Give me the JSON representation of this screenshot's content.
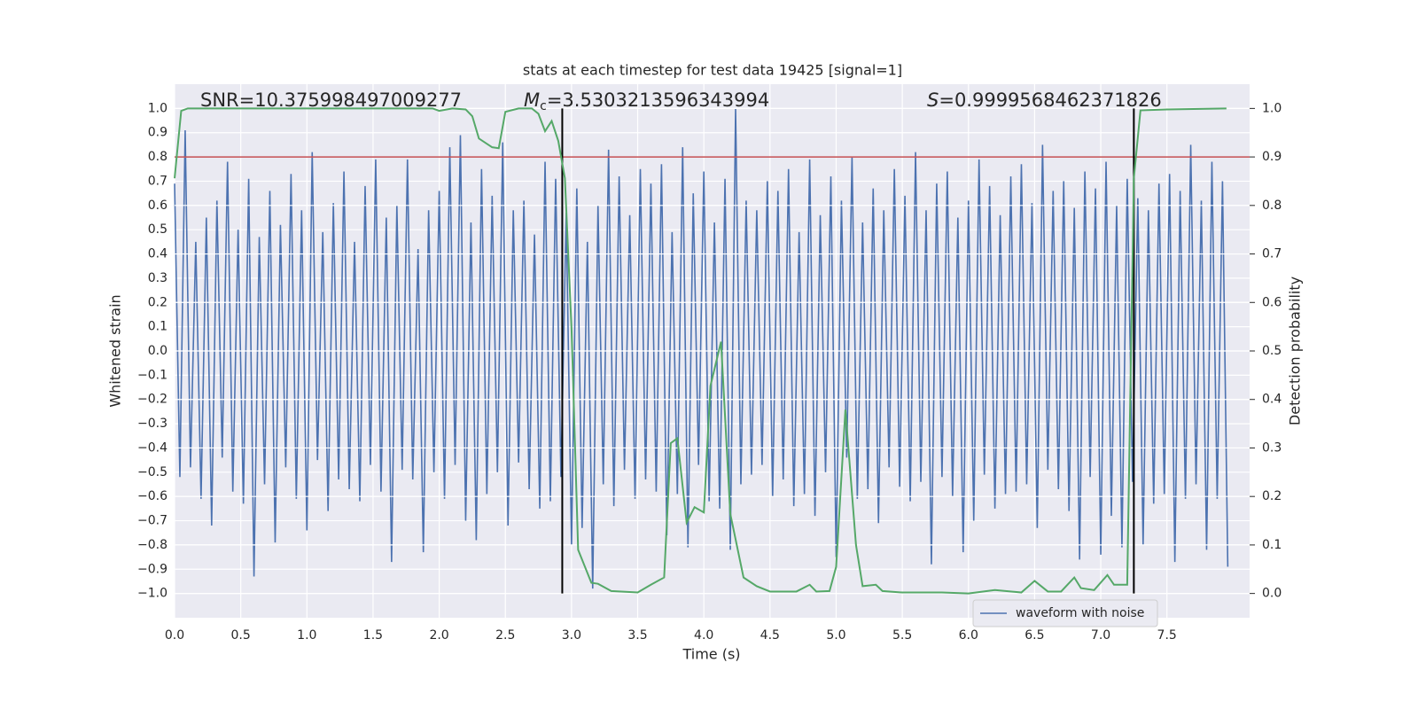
{
  "chart_data": {
    "type": "line",
    "title": "stats at each timestep for test data 19425 [signal=1]",
    "xlabel": "Time (s)",
    "ylabel": "Whitened strain",
    "y2label": "Detection probability",
    "xlim": [
      0,
      8.125
    ],
    "ylim": [
      -1.1,
      1.1
    ],
    "y2lim": [
      -0.05,
      1.05
    ],
    "grid": true,
    "legend": "lower right",
    "xticks": [
      {
        "value": 0,
        "label": "0.0"
      },
      0.5,
      {
        "value": 1,
        "label": "1.0"
      },
      1.5,
      {
        "value": 2,
        "label": "2.0"
      },
      2.5,
      {
        "value": 3,
        "label": "3.0"
      },
      3.5,
      {
        "value": 4,
        "label": "4.0"
      },
      4.5,
      {
        "value": 5,
        "label": "5.0"
      },
      5.5,
      {
        "value": 6,
        "label": "6.0"
      },
      6.5,
      {
        "value": 7,
        "label": "7.0"
      },
      7.5
    ],
    "yticks": [
      {
        "value": -1,
        "label": "−1.0"
      },
      {
        "value": -0.9,
        "label": "−0.9"
      },
      {
        "value": -0.8,
        "label": "−0.8"
      },
      {
        "value": -0.7,
        "label": "−0.7"
      },
      {
        "value": -0.6,
        "label": "−0.6"
      },
      {
        "value": -0.5,
        "label": "−0.5"
      },
      {
        "value": -0.4,
        "label": "−0.4"
      },
      {
        "value": -0.3,
        "label": "−0.3"
      },
      {
        "value": -0.2,
        "label": "−0.2"
      },
      {
        "value": -0.1,
        "label": "−0.1"
      },
      {
        "value": 0,
        "label": "0.0"
      },
      0.1,
      0.2,
      0.3,
      0.4,
      0.5,
      0.6,
      0.7,
      0.8,
      0.9,
      {
        "value": 1,
        "label": "1.0"
      }
    ],
    "y2ticks": [
      {
        "value": 0,
        "label": "0.0"
      },
      0.1,
      0.2,
      0.3,
      0.4,
      0.5,
      0.6,
      0.7,
      0.8,
      0.9,
      {
        "value": 1,
        "label": "1.0"
      }
    ],
    "series": [
      {
        "name": "waveform with noise",
        "color": "#4c72b0",
        "x": [
          0,
          0.04,
          0.08,
          0.12,
          0.16,
          0.2,
          0.24,
          0.28,
          0.32,
          0.36,
          0.4,
          0.44,
          0.48,
          0.52,
          0.56,
          0.6,
          0.64,
          0.68,
          0.72,
          0.76,
          0.8,
          0.84,
          0.88,
          0.92,
          0.96,
          1,
          1.04,
          1.08,
          1.12,
          1.16,
          1.2,
          1.24,
          1.28,
          1.32,
          1.36,
          1.4,
          1.44,
          1.48,
          1.52,
          1.56,
          1.6,
          1.64,
          1.68,
          1.72,
          1.76,
          1.8,
          1.84,
          1.88,
          1.92,
          1.96,
          2,
          2.04,
          2.08,
          2.12,
          2.16,
          2.2,
          2.24,
          2.28,
          2.32,
          2.36,
          2.4,
          2.44,
          2.48,
          2.52,
          2.56,
          2.6,
          2.64,
          2.68,
          2.72,
          2.76,
          2.8,
          2.84,
          2.88,
          2.92,
          2.96,
          3,
          3.04,
          3.08,
          3.12,
          3.16,
          3.2,
          3.24,
          3.28,
          3.32,
          3.36,
          3.4,
          3.44,
          3.48,
          3.52,
          3.56,
          3.6,
          3.64,
          3.68,
          3.72,
          3.76,
          3.8,
          3.84,
          3.88,
          3.92,
          3.96,
          4,
          4.04,
          4.08,
          4.12,
          4.16,
          4.2,
          4.24,
          4.28,
          4.32,
          4.36,
          4.4,
          4.44,
          4.48,
          4.52,
          4.56,
          4.6,
          4.64,
          4.68,
          4.72,
          4.76,
          4.8,
          4.84,
          4.88,
          4.92,
          4.96,
          5,
          5.04,
          5.08,
          5.12,
          5.16,
          5.2,
          5.24,
          5.28,
          5.32,
          5.36,
          5.4,
          5.44,
          5.48,
          5.52,
          5.56,
          5.6,
          5.64,
          5.68,
          5.72,
          5.76,
          5.8,
          5.84,
          5.88,
          5.92,
          5.96,
          6,
          6.04,
          6.08,
          6.12,
          6.16,
          6.2,
          6.24,
          6.28,
          6.32,
          6.36,
          6.4,
          6.44,
          6.48,
          6.52,
          6.56,
          6.6,
          6.64,
          6.68,
          6.72,
          6.76,
          6.8,
          6.84,
          6.88,
          6.92,
          6.96,
          7,
          7.04,
          7.08,
          7.12,
          7.16,
          7.2,
          7.24,
          7.28,
          7.32,
          7.36,
          7.4,
          7.44,
          7.48,
          7.52,
          7.56,
          7.6,
          7.64,
          7.68,
          7.72,
          7.76,
          7.8,
          7.84,
          7.88,
          7.92,
          7.96
        ],
        "values": [
          0.69,
          -0.52,
          0.91,
          -0.48,
          0.45,
          -0.61,
          0.55,
          -0.72,
          0.62,
          -0.44,
          0.78,
          -0.58,
          0.5,
          -0.63,
          0.71,
          -0.93,
          0.47,
          -0.55,
          0.66,
          -0.79,
          0.52,
          -0.48,
          0.73,
          -0.61,
          0.58,
          -0.74,
          0.82,
          -0.45,
          0.49,
          -0.66,
          0.61,
          -0.53,
          0.74,
          -0.57,
          0.45,
          -0.62,
          0.68,
          -0.47,
          0.79,
          -0.58,
          0.55,
          -0.87,
          0.6,
          -0.49,
          0.79,
          -0.53,
          0.42,
          -0.83,
          0.58,
          -0.5,
          0.66,
          -0.61,
          0.84,
          -0.47,
          0.89,
          -0.7,
          0.53,
          -0.78,
          0.75,
          -0.59,
          0.64,
          -0.5,
          0.86,
          -0.72,
          0.58,
          -0.46,
          0.62,
          -0.57,
          0.48,
          -0.65,
          0.78,
          -0.62,
          0.71,
          -0.52,
          0.57,
          -0.8,
          0.67,
          -0.73,
          0.45,
          -0.98,
          0.6,
          -0.55,
          0.83,
          -0.64,
          0.72,
          -0.49,
          0.56,
          -0.61,
          0.75,
          -0.53,
          0.69,
          -0.58,
          0.77,
          -0.76,
          0.49,
          -0.59,
          0.84,
          -0.81,
          0.65,
          -0.47,
          0.74,
          -0.62,
          0.53,
          -0.65,
          0.71,
          -0.82,
          1.0,
          -0.55,
          0.62,
          -0.51,
          0.58,
          -0.47,
          0.7,
          -0.6,
          0.66,
          -0.53,
          0.75,
          -0.64,
          0.49,
          -0.59,
          0.79,
          -0.68,
          0.56,
          -0.5,
          0.72,
          -0.85,
          0.62,
          -0.44,
          0.8,
          -0.61,
          0.53,
          -0.57,
          0.67,
          -0.71,
          0.58,
          -0.48,
          0.75,
          -0.56,
          0.64,
          -0.62,
          0.82,
          -0.54,
          0.58,
          -0.88,
          0.69,
          -0.52,
          0.74,
          -0.6,
          0.55,
          -0.83,
          0.62,
          -0.7,
          0.79,
          -0.51,
          0.68,
          -0.65,
          0.56,
          -0.59,
          0.72,
          -0.58,
          0.77,
          -0.55,
          0.61,
          -0.73,
          0.85,
          -0.49,
          0.66,
          -0.57,
          0.7,
          -0.66,
          0.59,
          -0.86,
          0.74,
          -0.52,
          0.67,
          -0.84,
          0.78,
          -0.68,
          0.6,
          -0.81,
          0.71,
          -0.54,
          0.63,
          -0.8,
          0.58,
          -0.63,
          0.69,
          -0.59,
          0.73,
          -0.87,
          0.66,
          -0.61,
          0.85,
          -0.55,
          0.62,
          -0.82,
          0.78,
          -0.61,
          0.7,
          -0.89
        ]
      }
    ],
    "detection": {
      "color": "#55a868",
      "x": [
        0,
        0.05,
        0.1,
        0.5,
        1,
        1.5,
        1.95,
        2,
        2.1,
        2.2,
        2.25,
        2.3,
        2.4,
        2.45,
        2.5,
        2.6,
        2.7,
        2.75,
        2.8,
        2.85,
        2.9,
        2.95,
        3,
        3.05,
        3.15,
        3.2,
        3.3,
        3.5,
        3.6,
        3.7,
        3.75,
        3.8,
        3.87,
        3.93,
        4,
        4.05,
        4.13,
        4.2,
        4.3,
        4.4,
        4.5,
        4.7,
        4.8,
        4.85,
        4.95,
        5,
        5.07,
        5.15,
        5.2,
        5.3,
        5.35,
        5.5,
        5.8,
        6,
        6.2,
        6.4,
        6.5,
        6.6,
        6.7,
        6.8,
        6.85,
        6.95,
        7.05,
        7.1,
        7.2,
        7.25,
        7.3,
        7.5,
        7.95
      ],
      "values": [
        0.856,
        0.995,
        1.0,
        1.0,
        1.0,
        1.0,
        1.0,
        0.995,
        1.0,
        0.998,
        0.984,
        0.938,
        0.92,
        0.918,
        0.993,
        1.0,
        1.0,
        0.989,
        0.953,
        0.974,
        0.933,
        0.856,
        0.546,
        0.09,
        0.022,
        0.02,
        0.005,
        0.002,
        0.018,
        0.033,
        0.31,
        0.32,
        0.146,
        0.178,
        0.167,
        0.428,
        0.519,
        0.164,
        0.033,
        0.015,
        0.004,
        0.004,
        0.018,
        0.004,
        0.005,
        0.055,
        0.379,
        0.1,
        0.015,
        0.018,
        0.005,
        0.002,
        0.002,
        0,
        0.007,
        0.002,
        0.026,
        0.004,
        0.004,
        0.033,
        0.011,
        0.007,
        0.038,
        0.018,
        0.018,
        0.856,
        0.996,
        0.998,
        1.0
      ]
    },
    "threshold": {
      "value": 0.8,
      "color": "#c44e52"
    },
    "vlines": {
      "values": [
        2.93,
        7.25
      ],
      "color": "#000000"
    },
    "snr_text": "SNR=10.375998497009277",
    "mc_text": {
      "symbol": "M",
      "subscript": "c",
      "text": "=3.5303213596343994"
    },
    "s_text": {
      "symbol": "S",
      "text": "=0.9999568462371826"
    }
  }
}
